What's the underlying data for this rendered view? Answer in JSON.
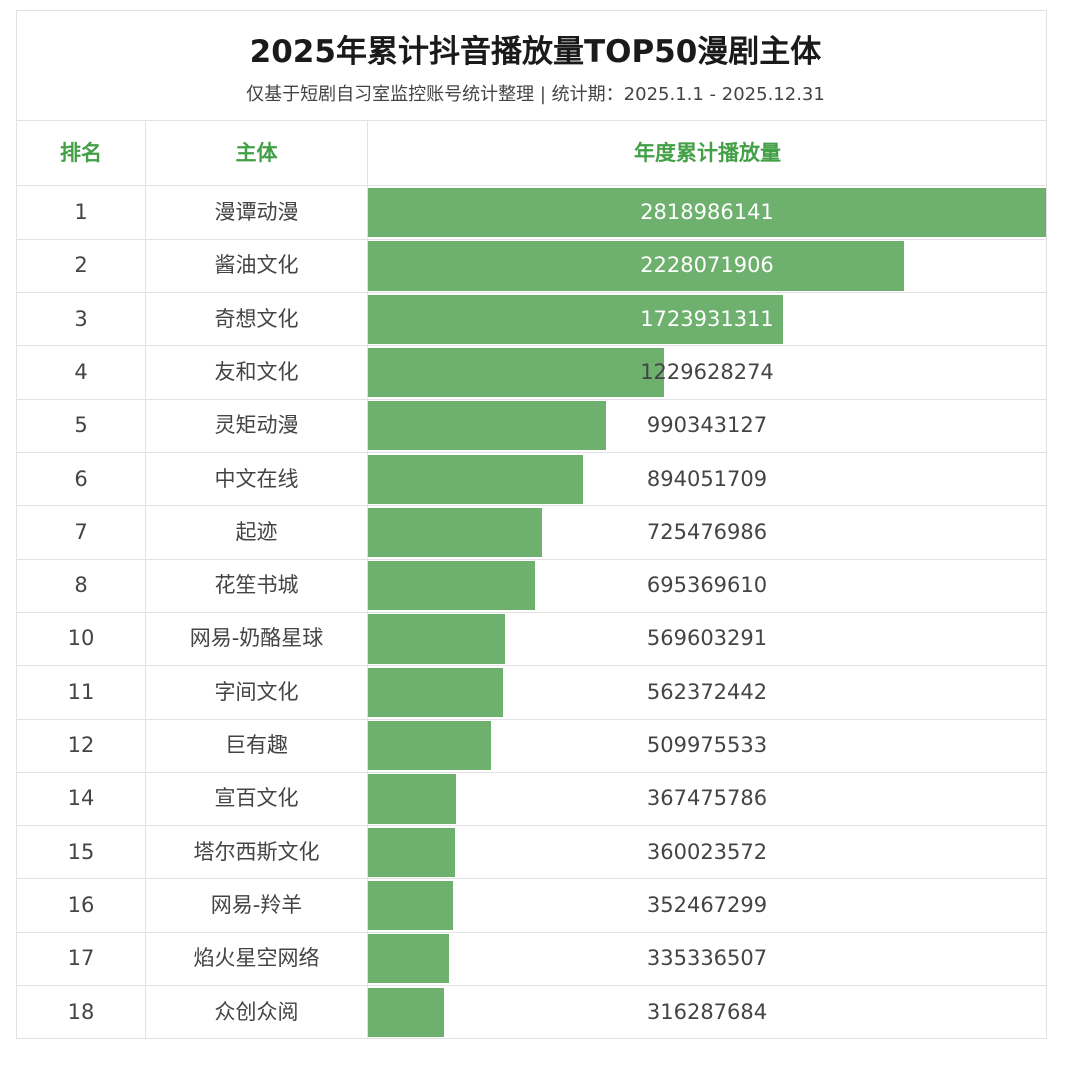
{
  "title": "2025年累计抖音播放量TOP50漫剧主体",
  "subtitle": "仅基于短剧自习室监控账号统计整理 | 统计期：2025.1.1 - 2025.12.31",
  "colors": {
    "accent": "#43a047",
    "bar": "#6eb06d",
    "border": "#e2e2e2"
  },
  "headers": {
    "rank": "排名",
    "entity": "主体",
    "plays": "年度累计播放量"
  },
  "chart_data": {
    "type": "bar",
    "orientation": "horizontal",
    "title": "2025年累计抖音播放量TOP50漫剧主体",
    "subtitle": "仅基于短剧自习室监控账号统计整理 | 统计期：2025.1.1 - 2025.12.31",
    "xlabel": "年度累计播放量",
    "ylabel": "主体",
    "xlim": [
      0,
      2818986141
    ],
    "grid": false,
    "rows": [
      {
        "rank": "1",
        "entity": "漫谭动漫",
        "value": 2818986141,
        "label": "2818986141"
      },
      {
        "rank": "2",
        "entity": "酱油文化",
        "value": 2228071906,
        "label": "2228071906"
      },
      {
        "rank": "3",
        "entity": "奇想文化",
        "value": 1723931311,
        "label": "1723931311"
      },
      {
        "rank": "4",
        "entity": "友和文化",
        "value": 1229628274,
        "label": "1229628274"
      },
      {
        "rank": "5",
        "entity": "灵矩动漫",
        "value": 990343127,
        "label": "990343127"
      },
      {
        "rank": "6",
        "entity": "中文在线",
        "value": 894051709,
        "label": "894051709"
      },
      {
        "rank": "7",
        "entity": "起迹",
        "value": 725476986,
        "label": "725476986"
      },
      {
        "rank": "8",
        "entity": "花笙书城",
        "value": 695369610,
        "label": "695369610"
      },
      {
        "rank": "10",
        "entity": "网易-奶酪星球",
        "value": 569603291,
        "label": "569603291"
      },
      {
        "rank": "11",
        "entity": "字间文化",
        "value": 562372442,
        "label": "562372442"
      },
      {
        "rank": "12",
        "entity": "巨有趣",
        "value": 509975533,
        "label": "509975533"
      },
      {
        "rank": "14",
        "entity": "宣百文化",
        "value": 367475786,
        "label": "367475786"
      },
      {
        "rank": "15",
        "entity": "塔尔西斯文化",
        "value": 360023572,
        "label": "360023572"
      },
      {
        "rank": "16",
        "entity": "网易-羚羊",
        "value": 352467299,
        "label": "352467299"
      },
      {
        "rank": "17",
        "entity": "焰火星空网络",
        "value": 335336507,
        "label": "335336507"
      },
      {
        "rank": "18",
        "entity": "众创众阅",
        "value": 316287684,
        "label": "316287684"
      }
    ]
  }
}
